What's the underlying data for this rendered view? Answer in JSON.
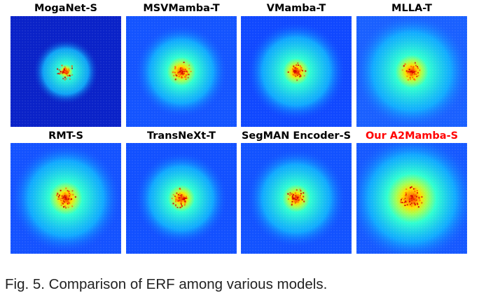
{
  "figure": {
    "panels": [
      {
        "label": "MogaNet-S",
        "label_color": "#000000",
        "bg": "#0a22c8",
        "spread": 0.3,
        "core": 0.45
      },
      {
        "label": "MSVMamba-T",
        "label_color": "#000000",
        "bg": "#1454ff",
        "spread": 0.42,
        "core": 0.65
      },
      {
        "label": "VMamba-T",
        "label_color": "#000000",
        "bg": "#1048ff",
        "spread": 0.45,
        "core": 0.55
      },
      {
        "label": "MLLA-T",
        "label_color": "#000000",
        "bg": "#1a60ff",
        "spread": 0.52,
        "core": 0.6
      },
      {
        "label": "RMT-S",
        "label_color": "#000000",
        "bg": "#1452ff",
        "spread": 0.5,
        "core": 0.62
      },
      {
        "label": "TransNeXt-T",
        "label_color": "#000000",
        "bg": "#1250ff",
        "spread": 0.42,
        "core": 0.6
      },
      {
        "label": "SegMAN Encoder-S",
        "label_color": "#000000",
        "bg": "#1252ff",
        "spread": 0.45,
        "core": 0.58
      },
      {
        "label": "Our A2Mamba-S",
        "label_color": "#ff0000",
        "bg": "#1658ff",
        "spread": 0.58,
        "core": 0.8
      }
    ]
  },
  "caption": "Fig. 5. Comparison of ERF among various models."
}
